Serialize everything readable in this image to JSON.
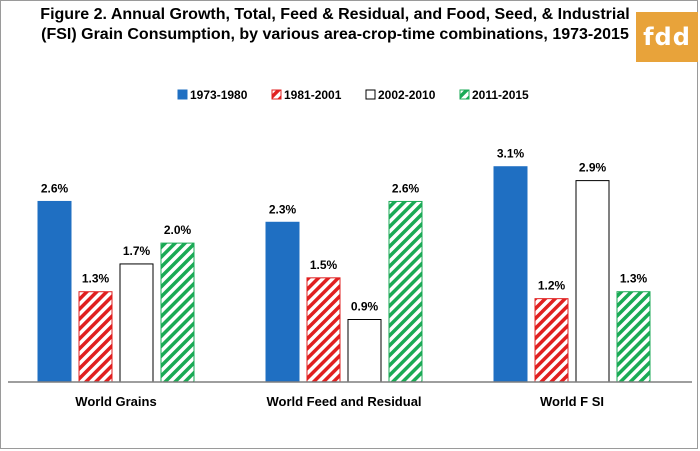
{
  "title": "Figure 2. Annual Growth, Total, Feed & Residual, and Food, Seed, & Industrial (FSI) Grain Consumption, by various area-crop-time combinations, 1973-2015",
  "logo": "fdd",
  "colors": {
    "1973-1980": "#1f6fc2",
    "1981-2001": "#e02020",
    "2002-2010": "#ffffff",
    "2011-2015": "#1aaa55"
  },
  "chart_data": {
    "type": "bar",
    "title": "Figure 2. Annual Growth, Total, Feed & Residual, and Food, Seed, & Industrial (FSI) Grain Consumption, by various area-crop-time combinations, 1973-2015",
    "categories": [
      "World Grains",
      "World Feed and Residual",
      "World F SI"
    ],
    "series": [
      {
        "name": "1973-1980",
        "values": [
          2.6,
          2.3,
          3.1
        ],
        "labels": [
          "2.6%",
          "2.3%",
          "3.1%"
        ],
        "fill": "solid"
      },
      {
        "name": "1981-2001",
        "values": [
          1.3,
          1.5,
          1.2
        ],
        "labels": [
          "1.3%",
          "1.5%",
          "1.2%"
        ],
        "fill": "hatched"
      },
      {
        "name": "2002-2010",
        "values": [
          1.7,
          0.9,
          2.9
        ],
        "labels": [
          "1.7%",
          "0.9%",
          "2.9%"
        ],
        "fill": "outline"
      },
      {
        "name": "2011-2015",
        "values": [
          2.0,
          2.6,
          1.3
        ],
        "labels": [
          "2.0%",
          "2.6%",
          "1.3%"
        ],
        "fill": "hatched"
      }
    ],
    "ylim": [
      0,
      3.6
    ],
    "legend": "top",
    "grid": false
  }
}
